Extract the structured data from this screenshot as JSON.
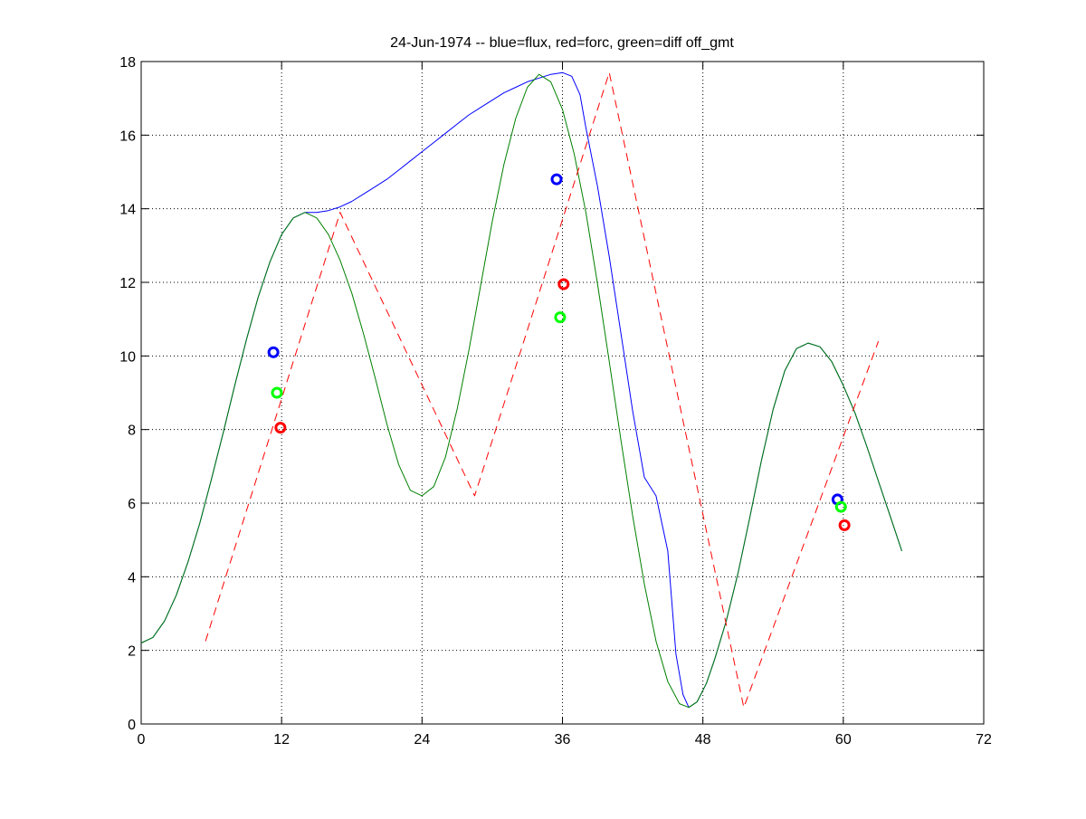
{
  "chart_data": {
    "type": "line",
    "title": "24-Jun-1974 -- blue=flux, red=forc, green=diff off_gmt",
    "xlabel": "",
    "ylabel": "",
    "xlim": [
      0,
      72
    ],
    "ylim": [
      0,
      18
    ],
    "xticks": [
      0,
      12,
      24,
      36,
      48,
      60,
      72
    ],
    "yticks": [
      0,
      2,
      4,
      6,
      8,
      10,
      12,
      14,
      16,
      18
    ],
    "grid": true,
    "colors": {
      "flux": "#0000ff",
      "forc": "#ff0000",
      "diff": "#008000",
      "diff_marker": "#00ff00"
    },
    "series": [
      {
        "key": "flux",
        "color": "#0000ff",
        "style": "solid",
        "points": [
          [
            0,
            2.2
          ],
          [
            1,
            2.35
          ],
          [
            2,
            2.8
          ],
          [
            3,
            3.5
          ],
          [
            4,
            4.4
          ],
          [
            5,
            5.45
          ],
          [
            6,
            6.65
          ],
          [
            7,
            7.9
          ],
          [
            8,
            9.2
          ],
          [
            9,
            10.45
          ],
          [
            10,
            11.6
          ],
          [
            11,
            12.55
          ],
          [
            12,
            13.3
          ],
          [
            13,
            13.75
          ],
          [
            14,
            13.9
          ],
          [
            15,
            13.9
          ],
          [
            16,
            13.95
          ],
          [
            17,
            14.05
          ],
          [
            18,
            14.2
          ],
          [
            19,
            14.4
          ],
          [
            20,
            14.6
          ],
          [
            21,
            14.8
          ],
          [
            22,
            15.05
          ],
          [
            23,
            15.3
          ],
          [
            24,
            15.55
          ],
          [
            25,
            15.8
          ],
          [
            26,
            16.05
          ],
          [
            27,
            16.3
          ],
          [
            28,
            16.55
          ],
          [
            29,
            16.75
          ],
          [
            30,
            16.95
          ],
          [
            31,
            17.15
          ],
          [
            32,
            17.3
          ],
          [
            33,
            17.45
          ],
          [
            34,
            17.55
          ],
          [
            35,
            17.65
          ],
          [
            36,
            17.7
          ],
          [
            36.8,
            17.6
          ],
          [
            37.5,
            17.1
          ],
          [
            38,
            16.2
          ],
          [
            39,
            14.6
          ],
          [
            40,
            12.7
          ],
          [
            41,
            10.6
          ],
          [
            42,
            8.5
          ],
          [
            43,
            6.7
          ],
          [
            44,
            6.2
          ],
          [
            45,
            4.7
          ],
          [
            45.7,
            1.9
          ],
          [
            46.3,
            0.8
          ],
          [
            46.8,
            0.45
          ],
          [
            47.5,
            0.6
          ],
          [
            48.3,
            1.1
          ],
          [
            49,
            1.75
          ],
          [
            50,
            2.8
          ],
          [
            51,
            4.1
          ],
          [
            52,
            5.6
          ],
          [
            53,
            7.15
          ],
          [
            54,
            8.55
          ],
          [
            55,
            9.6
          ],
          [
            56,
            10.2
          ],
          [
            57,
            10.35
          ],
          [
            58,
            10.25
          ],
          [
            59,
            9.85
          ],
          [
            60,
            9.2
          ],
          [
            61,
            8.45
          ],
          [
            62,
            7.55
          ],
          [
            63,
            6.6
          ],
          [
            64,
            5.65
          ],
          [
            65,
            4.7
          ]
        ]
      },
      {
        "key": "diff",
        "color": "#008000",
        "style": "solid",
        "points": [
          [
            0,
            2.2
          ],
          [
            1,
            2.35
          ],
          [
            2,
            2.8
          ],
          [
            3,
            3.5
          ],
          [
            4,
            4.4
          ],
          [
            5,
            5.45
          ],
          [
            6,
            6.65
          ],
          [
            7,
            7.9
          ],
          [
            8,
            9.2
          ],
          [
            9,
            10.45
          ],
          [
            10,
            11.6
          ],
          [
            11,
            12.55
          ],
          [
            12,
            13.3
          ],
          [
            13,
            13.75
          ],
          [
            14,
            13.9
          ],
          [
            15,
            13.75
          ],
          [
            16,
            13.3
          ],
          [
            17,
            12.6
          ],
          [
            18,
            11.7
          ],
          [
            19,
            10.6
          ],
          [
            20,
            9.4
          ],
          [
            21,
            8.15
          ],
          [
            22,
            7.05
          ],
          [
            23,
            6.35
          ],
          [
            24,
            6.2
          ],
          [
            25,
            6.45
          ],
          [
            26,
            7.25
          ],
          [
            27,
            8.55
          ],
          [
            28,
            10.15
          ],
          [
            29,
            11.9
          ],
          [
            30,
            13.65
          ],
          [
            31,
            15.2
          ],
          [
            32,
            16.45
          ],
          [
            33,
            17.3
          ],
          [
            34,
            17.65
          ],
          [
            35,
            17.45
          ],
          [
            36,
            16.7
          ],
          [
            37,
            15.5
          ],
          [
            38,
            13.9
          ],
          [
            39,
            11.95
          ],
          [
            40,
            9.85
          ],
          [
            41,
            7.7
          ],
          [
            42,
            5.65
          ],
          [
            43,
            3.8
          ],
          [
            44,
            2.25
          ],
          [
            45,
            1.15
          ],
          [
            46,
            0.55
          ],
          [
            46.8,
            0.45
          ],
          [
            47.5,
            0.6
          ],
          [
            48.3,
            1.1
          ],
          [
            49,
            1.75
          ],
          [
            50,
            2.8
          ],
          [
            51,
            4.1
          ],
          [
            52,
            5.6
          ],
          [
            53,
            7.15
          ],
          [
            54,
            8.55
          ],
          [
            55,
            9.6
          ],
          [
            56,
            10.2
          ],
          [
            57,
            10.35
          ],
          [
            58,
            10.25
          ],
          [
            59,
            9.85
          ],
          [
            60,
            9.2
          ],
          [
            61,
            8.45
          ],
          [
            62,
            7.55
          ],
          [
            63,
            6.6
          ],
          [
            64,
            5.65
          ],
          [
            65,
            4.7
          ]
        ]
      },
      {
        "key": "forc",
        "color": "#ff0000",
        "style": "dashed",
        "points": [
          [
            5.5,
            2.25
          ],
          [
            17,
            13.9
          ],
          [
            28.5,
            6.2
          ],
          [
            40,
            17.7
          ],
          [
            51.5,
            0.45
          ],
          [
            63,
            10.4
          ]
        ]
      }
    ],
    "markers": [
      {
        "key": "flux",
        "color": "#0000ff",
        "points": [
          [
            11.3,
            10.1
          ],
          [
            35.5,
            14.8
          ],
          [
            59.5,
            6.1
          ]
        ]
      },
      {
        "key": "diff",
        "color": "#00ff00",
        "points": [
          [
            11.6,
            9.0
          ],
          [
            35.8,
            11.05
          ],
          [
            59.8,
            5.9
          ]
        ]
      },
      {
        "key": "forc",
        "color": "#ff0000",
        "points": [
          [
            11.9,
            8.05
          ],
          [
            36.1,
            11.95
          ],
          [
            60.1,
            5.4
          ]
        ]
      }
    ]
  }
}
